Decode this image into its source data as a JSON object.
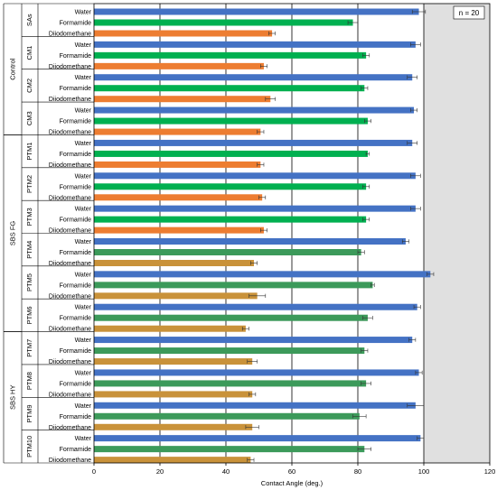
{
  "chart_data": {
    "type": "bar",
    "orientation": "horizontal",
    "xlabel": "Contact Angle (deg.)",
    "xlim": [
      0,
      120
    ],
    "xticks": [
      0,
      20,
      40,
      60,
      80,
      100,
      120
    ],
    "grid": "vertical",
    "annotation": "n = 20",
    "liquids": [
      "Water",
      "Formamide",
      "Diiodomethane"
    ],
    "colors": {
      "water": "#4472c4",
      "formamide": "#00b050",
      "formamide_dark": "#3c9a5a",
      "diiodomethane": "#ed7d31",
      "diiodomethane_dark": "#c9923a",
      "shaded_bg": "#e0e0e0",
      "error_bar": "#333333"
    },
    "supergroups": [
      {
        "label": "Control",
        "groups": [
          "SAs",
          "CM1",
          "CM2",
          "CM3"
        ]
      },
      {
        "label": "SBS FG",
        "groups": [
          "PTM1",
          "PTM2",
          "PTM3",
          "PTM4",
          "PTM5",
          "PTM6"
        ]
      },
      {
        "label": "SBS HY",
        "groups": [
          "PTM7",
          "PTM8",
          "PTM9",
          "PTM10"
        ]
      }
    ],
    "groups": [
      {
        "name": "SAs",
        "values": [
          98.5,
          78.5,
          54.0
        ],
        "errors": [
          2.0,
          1.5,
          1.0
        ]
      },
      {
        "name": "CM1",
        "values": [
          97.5,
          82.5,
          51.5
        ],
        "errors": [
          1.5,
          1.0,
          1.0
        ]
      },
      {
        "name": "CM2",
        "values": [
          96.5,
          82.0,
          53.5
        ],
        "errors": [
          1.5,
          1.0,
          1.5
        ]
      },
      {
        "name": "CM3",
        "values": [
          97.0,
          83.0,
          50.5
        ],
        "errors": [
          1.0,
          1.0,
          1.0
        ]
      },
      {
        "name": "PTM1",
        "values": [
          96.5,
          83.0,
          50.5
        ],
        "errors": [
          1.5,
          0.5,
          1.0
        ]
      },
      {
        "name": "PTM2",
        "values": [
          97.5,
          82.5,
          51.0
        ],
        "errors": [
          1.5,
          1.0,
          1.0
        ]
      },
      {
        "name": "PTM3",
        "values": [
          97.5,
          82.5,
          51.5
        ],
        "errors": [
          1.5,
          1.0,
          1.0
        ]
      },
      {
        "name": "PTM4",
        "values": [
          94.5,
          81.0,
          48.5
        ],
        "errors": [
          1.0,
          1.0,
          1.0
        ]
      },
      {
        "name": "PTM5",
        "values": [
          102.0,
          84.5,
          49.5
        ],
        "errors": [
          1.0,
          0.5,
          2.5
        ]
      },
      {
        "name": "PTM6",
        "values": [
          98.0,
          83.0,
          46.0
        ],
        "errors": [
          1.0,
          1.5,
          1.0
        ]
      },
      {
        "name": "PTM7",
        "values": [
          96.5,
          82.0,
          48.0
        ],
        "errors": [
          1.0,
          1.0,
          1.5
        ]
      },
      {
        "name": "PTM8",
        "values": [
          98.5,
          82.5,
          48.0
        ],
        "errors": [
          1.0,
          1.5,
          1.0
        ]
      },
      {
        "name": "PTM9",
        "values": [
          97.5,
          80.5,
          48.0
        ],
        "errors": [
          2.5,
          2.0,
          2.0
        ]
      },
      {
        "name": "PTM10",
        "values": [
          99.0,
          82.0,
          47.5
        ],
        "errors": [
          1.0,
          2.0,
          1.0
        ]
      }
    ],
    "darker_bar_groups": [
      "PTM4",
      "PTM5",
      "PTM6",
      "PTM7",
      "PTM8",
      "PTM9",
      "PTM10"
    ]
  }
}
